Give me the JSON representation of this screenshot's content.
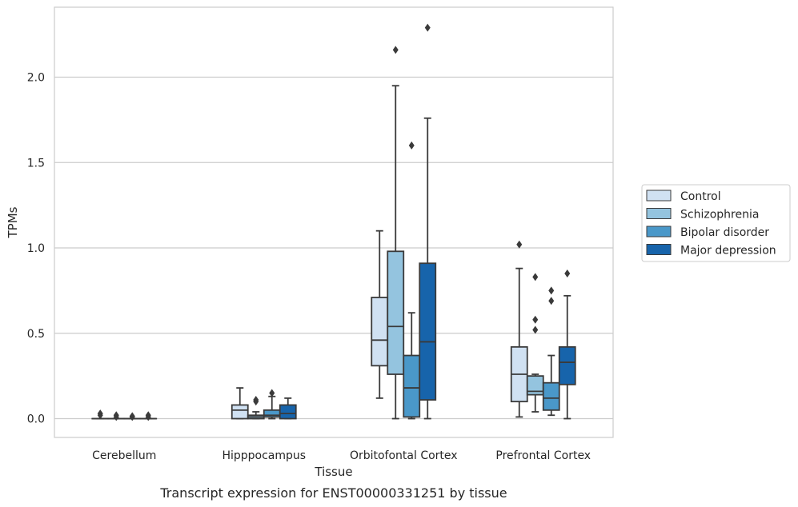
{
  "chart_data": {
    "type": "box",
    "caption": "Transcript expression for ENST00000331251 by tissue",
    "xlabel": "Tissue",
    "ylabel": "TPMs",
    "ylim": [
      -0.11,
      2.41
    ],
    "yticks": [
      0.0,
      0.5,
      1.0,
      1.5,
      2.0
    ],
    "ytick_labels": [
      "0.0",
      "0.5",
      "1.0",
      "1.5",
      "2.0"
    ],
    "categories": [
      "Cerebellum",
      "Hipppocampus",
      "Orbitofontal Cortex",
      "Prefrontal Cortex"
    ],
    "grid": true,
    "legend_position": "right",
    "series": [
      {
        "name": "Control",
        "color": "#d0e1f2",
        "boxes": [
          {
            "whislo": 0.0,
            "q1": 0.0,
            "med": 0.0,
            "q3": 0.0,
            "whishi": 0.0,
            "fliers": [
              0.02,
              0.03
            ]
          },
          {
            "whislo": 0.0,
            "q1": 0.0,
            "med": 0.05,
            "q3": 0.08,
            "whishi": 0.18,
            "fliers": []
          },
          {
            "whislo": 0.12,
            "q1": 0.31,
            "med": 0.46,
            "q3": 0.71,
            "whishi": 1.1,
            "fliers": []
          },
          {
            "whislo": 0.01,
            "q1": 0.1,
            "med": 0.26,
            "q3": 0.42,
            "whishi": 0.88,
            "fliers": [
              1.02
            ]
          }
        ]
      },
      {
        "name": "Schizophrenia",
        "color": "#94c4df",
        "boxes": [
          {
            "whislo": 0.0,
            "q1": 0.0,
            "med": 0.0,
            "q3": 0.0,
            "whishi": 0.0,
            "fliers": [
              0.01,
              0.02
            ]
          },
          {
            "whislo": 0.0,
            "q1": 0.0,
            "med": 0.01,
            "q3": 0.02,
            "whishi": 0.04,
            "fliers": [
              0.1,
              0.11
            ]
          },
          {
            "whislo": 0.0,
            "q1": 0.26,
            "med": 0.54,
            "q3": 0.98,
            "whishi": 1.95,
            "fliers": [
              2.16
            ]
          },
          {
            "whislo": 0.04,
            "q1": 0.14,
            "med": 0.16,
            "q3": 0.25,
            "whishi": 0.26,
            "fliers": [
              0.52,
              0.58,
              0.83
            ]
          }
        ]
      },
      {
        "name": "Bipolar disorder",
        "color": "#4a98c9",
        "boxes": [
          {
            "whislo": 0.0,
            "q1": 0.0,
            "med": 0.0,
            "q3": 0.0,
            "whishi": 0.0,
            "fliers": [
              0.01,
              0.015
            ]
          },
          {
            "whislo": 0.0,
            "q1": 0.01,
            "med": 0.02,
            "q3": 0.05,
            "whishi": 0.13,
            "fliers": [
              0.15
            ]
          },
          {
            "whislo": 0.0,
            "q1": 0.01,
            "med": 0.18,
            "q3": 0.37,
            "whishi": 0.62,
            "fliers": [
              1.6
            ]
          },
          {
            "whislo": 0.02,
            "q1": 0.05,
            "med": 0.12,
            "q3": 0.21,
            "whishi": 0.37,
            "fliers": [
              0.69,
              0.75
            ]
          }
        ]
      },
      {
        "name": "Major depression",
        "color": "#1764ab",
        "boxes": [
          {
            "whislo": 0.0,
            "q1": 0.0,
            "med": 0.0,
            "q3": 0.0,
            "whishi": 0.0,
            "fliers": [
              0.01,
              0.02
            ]
          },
          {
            "whislo": 0.0,
            "q1": 0.0,
            "med": 0.03,
            "q3": 0.08,
            "whishi": 0.12,
            "fliers": []
          },
          {
            "whislo": 0.0,
            "q1": 0.11,
            "med": 0.45,
            "q3": 0.91,
            "whishi": 1.76,
            "fliers": [
              2.29
            ]
          },
          {
            "whislo": 0.0,
            "q1": 0.2,
            "med": 0.33,
            "q3": 0.42,
            "whishi": 0.72,
            "fliers": [
              0.85
            ]
          }
        ]
      }
    ]
  }
}
